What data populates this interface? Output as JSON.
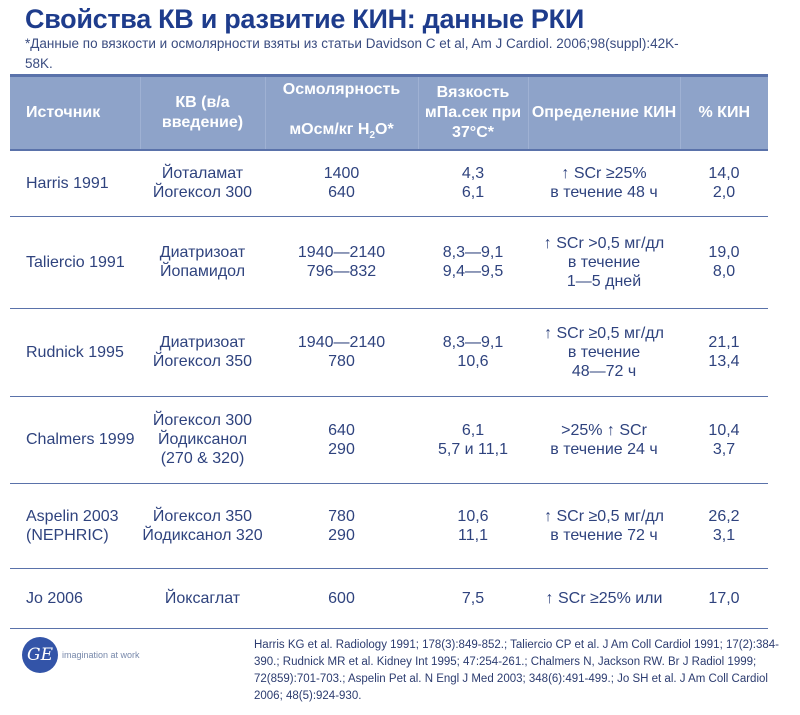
{
  "title": "Свойства КВ и развитие КИН: данные РКИ",
  "note": "*Данные по вязкости и осмолярности взяты из статьи  Davidson C et al, Am J Cardiol. 2006;98(suppl):42K-58K.",
  "headers": [
    "Источник",
    "КВ (в/а введение)",
    "Осмолярность мОсм/кг H2O*",
    "Вязкость мПа.сек при 37°C*",
    "Определение КИН",
    "% КИН"
  ],
  "header_parts": {
    "osm1": "Осмолярность",
    "osm2": "мОсм/кг H",
    "osm_sub": "2",
    "osm3": "O*"
  },
  "rows": [
    {
      "source": "Harris 1991",
      "agent": "Йоталамат Йогексол 300",
      "osm": "1400\n640",
      "visc": "4,3\n6,1",
      "def": "↑ SCr ≥25%\nв течение 48 ч",
      "cin": "14,0\n2,0"
    },
    {
      "source": "Taliercio 1991",
      "agent": "Диатризоат\nЙопамидол",
      "osm": "1940—2140\n796—832",
      "visc": "8,3—9,1\n9,4—9,5",
      "def": "↑ SCr >0,5 мг/дл\nв течение\n1—5 дней",
      "cin": "19,0\n8,0"
    },
    {
      "source": "Rudnick 1995",
      "agent": "Диатризоат\nЙогексол 350",
      "osm": "1940—2140\n780",
      "visc": "8,3—9,1\n10,6",
      "def": "↑ SCr ≥0,5 мг/дл\nв течение\n48—72 ч",
      "cin": "21,1\n13,4"
    },
    {
      "source": "Chalmers 1999",
      "agent": "Йогексол 300\nЙодиксанол (270 & 320)",
      "osm": "640\n290",
      "visc": "6,1\n5,7 и 11,1",
      "def": ">25% ↑ SCr\nв течение 24 ч",
      "cin": "10,4\n3,7"
    },
    {
      "source": "Aspelin 2003 (NEPHRIC)",
      "agent": "Йогексол 350\nЙодиксанол 320",
      "osm": "780\n290",
      "visc": "10,6\n11,1",
      "def": "↑ SCr ≥0,5 мг/дл\nв течение 72 ч",
      "cin": "26,2\n3,1"
    },
    {
      "source": "Jo 2006",
      "agent": "Йоксаглат",
      "osm": "600",
      "visc": "7,5",
      "def": "↑ SCr ≥25% или",
      "cin": "17,0"
    }
  ],
  "logo": {
    "mark": "GE",
    "tagline": "imagination at work"
  },
  "references": "Harris KG et al. Radiology 1991; 178(3):849-852.;  Taliercio CP et al. J Am Coll Cardiol 1991; 17(2):384-390.;  Rudnick MR et al. Kidney Int 1995; 47:254-261.;  Chalmers N, Jackson RW. Br J Radiol 1999; 72(859):701-703.;  Aspelin Pet al. N Engl J Med 2003; 348(6):491-499.;  Jo SH et al. J Am Coll Cardiol 2006; 48(5):924-930."
}
